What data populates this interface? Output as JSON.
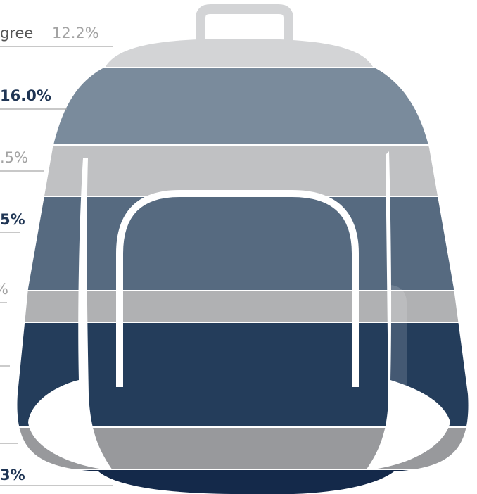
{
  "rows": [
    {
      "label": "gree",
      "value": "12.2%"
    },
    {
      "value": "16.0%"
    },
    {
      "value": ".5%"
    },
    {
      "value": "5%"
    },
    {
      "value": "%"
    },
    {
      "value": "3%"
    }
  ]
}
